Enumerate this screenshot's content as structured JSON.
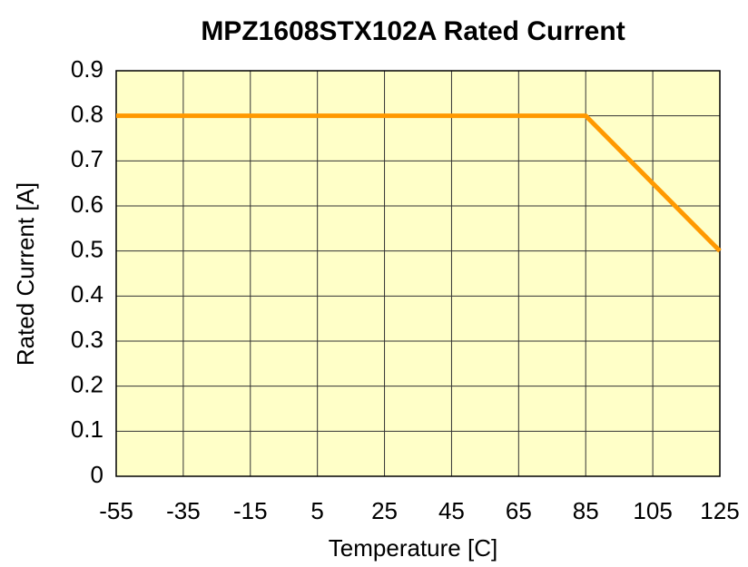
{
  "chart_data": {
    "type": "line",
    "title": "MPZ1608STX102A Rated Current",
    "x_label": "Temperature  [C]",
    "y_label": "Rated Current  [A]",
    "x": [
      -55,
      85,
      125
    ],
    "series": [
      {
        "name": "Rated Current",
        "color": "#ff9900",
        "values": [
          0.8,
          0.8,
          0.5
        ]
      }
    ],
    "xlim": [
      -55,
      125
    ],
    "xticks": [
      -55,
      -35,
      -15,
      5,
      25,
      45,
      65,
      85,
      105,
      125
    ],
    "ylim": [
      0,
      0.9
    ],
    "yticks": [
      0,
      0.1,
      0.2,
      0.3,
      0.4,
      0.5,
      0.6,
      0.7,
      0.8,
      0.9
    ],
    "grid": true,
    "plot_background": "#ffffc8"
  }
}
